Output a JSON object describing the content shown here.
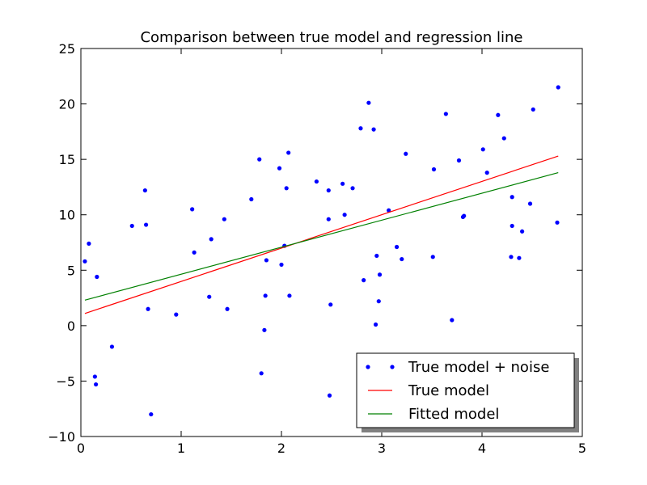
{
  "chart_data": {
    "type": "scatter",
    "title": "Comparison between true model and regression line",
    "xlabel": "",
    "ylabel": "",
    "xlim": [
      0,
      5
    ],
    "ylim": [
      -10,
      25
    ],
    "xticks": [
      0,
      1,
      2,
      3,
      4,
      5
    ],
    "yticks": [
      -10,
      -5,
      0,
      5,
      10,
      15,
      20,
      25
    ],
    "grid": false,
    "legend_position": "lower-right",
    "series": [
      {
        "name": "True model + noise",
        "kind": "points",
        "color": "#0000ff",
        "points": [
          [
            0.04,
            5.8
          ],
          [
            0.08,
            7.4
          ],
          [
            0.14,
            -4.6
          ],
          [
            0.15,
            -5.3
          ],
          [
            0.16,
            4.4
          ],
          [
            0.31,
            -1.9
          ],
          [
            0.51,
            9.0
          ],
          [
            0.64,
            12.2
          ],
          [
            0.65,
            9.1
          ],
          [
            0.67,
            1.5
          ],
          [
            0.7,
            -8.0
          ],
          [
            0.95,
            1.0
          ],
          [
            1.11,
            10.5
          ],
          [
            1.13,
            6.6
          ],
          [
            1.28,
            2.6
          ],
          [
            1.3,
            7.8
          ],
          [
            1.43,
            9.6
          ],
          [
            1.46,
            1.5
          ],
          [
            1.7,
            11.4
          ],
          [
            1.78,
            15.0
          ],
          [
            1.8,
            -4.3
          ],
          [
            1.83,
            -0.4
          ],
          [
            1.84,
            2.7
          ],
          [
            1.85,
            5.9
          ],
          [
            1.98,
            14.2
          ],
          [
            2.0,
            5.5
          ],
          [
            2.03,
            7.2
          ],
          [
            2.05,
            12.4
          ],
          [
            2.07,
            15.6
          ],
          [
            2.08,
            2.7
          ],
          [
            2.35,
            13.0
          ],
          [
            2.47,
            9.6
          ],
          [
            2.47,
            12.2
          ],
          [
            2.48,
            -6.3
          ],
          [
            2.49,
            1.9
          ],
          [
            2.61,
            12.8
          ],
          [
            2.63,
            10.0
          ],
          [
            2.71,
            12.4
          ],
          [
            2.79,
            17.8
          ],
          [
            2.82,
            4.1
          ],
          [
            2.87,
            20.1
          ],
          [
            2.92,
            17.7
          ],
          [
            2.94,
            0.1
          ],
          [
            2.95,
            6.3
          ],
          [
            2.97,
            2.2
          ],
          [
            2.98,
            4.6
          ],
          [
            3.07,
            10.4
          ],
          [
            3.15,
            7.1
          ],
          [
            3.2,
            6.0
          ],
          [
            3.24,
            15.5
          ],
          [
            3.51,
            6.2
          ],
          [
            3.52,
            14.1
          ],
          [
            3.64,
            19.1
          ],
          [
            3.7,
            0.5
          ],
          [
            3.77,
            14.9
          ],
          [
            3.81,
            9.8
          ],
          [
            3.82,
            9.9
          ],
          [
            4.01,
            15.9
          ],
          [
            4.05,
            13.8
          ],
          [
            4.16,
            19.0
          ],
          [
            4.22,
            16.9
          ],
          [
            4.29,
            6.2
          ],
          [
            4.3,
            9.0
          ],
          [
            4.3,
            11.6
          ],
          [
            4.37,
            6.1
          ],
          [
            4.4,
            8.5
          ],
          [
            4.48,
            11.0
          ],
          [
            4.51,
            19.5
          ],
          [
            4.75,
            9.3
          ],
          [
            4.76,
            21.5
          ]
        ]
      },
      {
        "name": "True model",
        "kind": "line",
        "color": "#ff0000",
        "points": [
          [
            0.04,
            1.1
          ],
          [
            4.76,
            15.3
          ]
        ]
      },
      {
        "name": "Fitted model",
        "kind": "line",
        "color": "#008000",
        "points": [
          [
            0.04,
            2.3
          ],
          [
            4.76,
            13.8
          ]
        ]
      }
    ]
  }
}
